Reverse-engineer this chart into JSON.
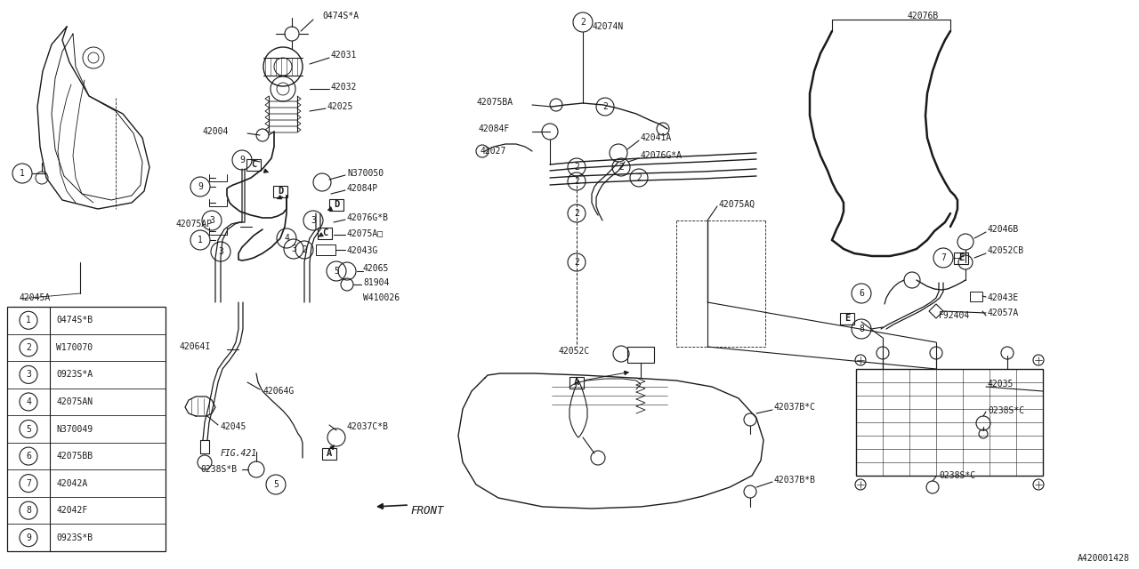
{
  "bg_color": "#ffffff",
  "line_color": "#1a1a1a",
  "ref_code": "A420001428",
  "legend_items": [
    {
      "num": "1",
      "code": "0474S*B"
    },
    {
      "num": "2",
      "code": "W170070"
    },
    {
      "num": "3",
      "code": "0923S*A"
    },
    {
      "num": "4",
      "code": "42075AN"
    },
    {
      "num": "5",
      "code": "N370049"
    },
    {
      "num": "6",
      "code": "42075BB"
    },
    {
      "num": "7",
      "code": "42042A"
    },
    {
      "num": "8",
      "code": "42042F"
    },
    {
      "num": "9",
      "code": "0923S*B"
    }
  ]
}
